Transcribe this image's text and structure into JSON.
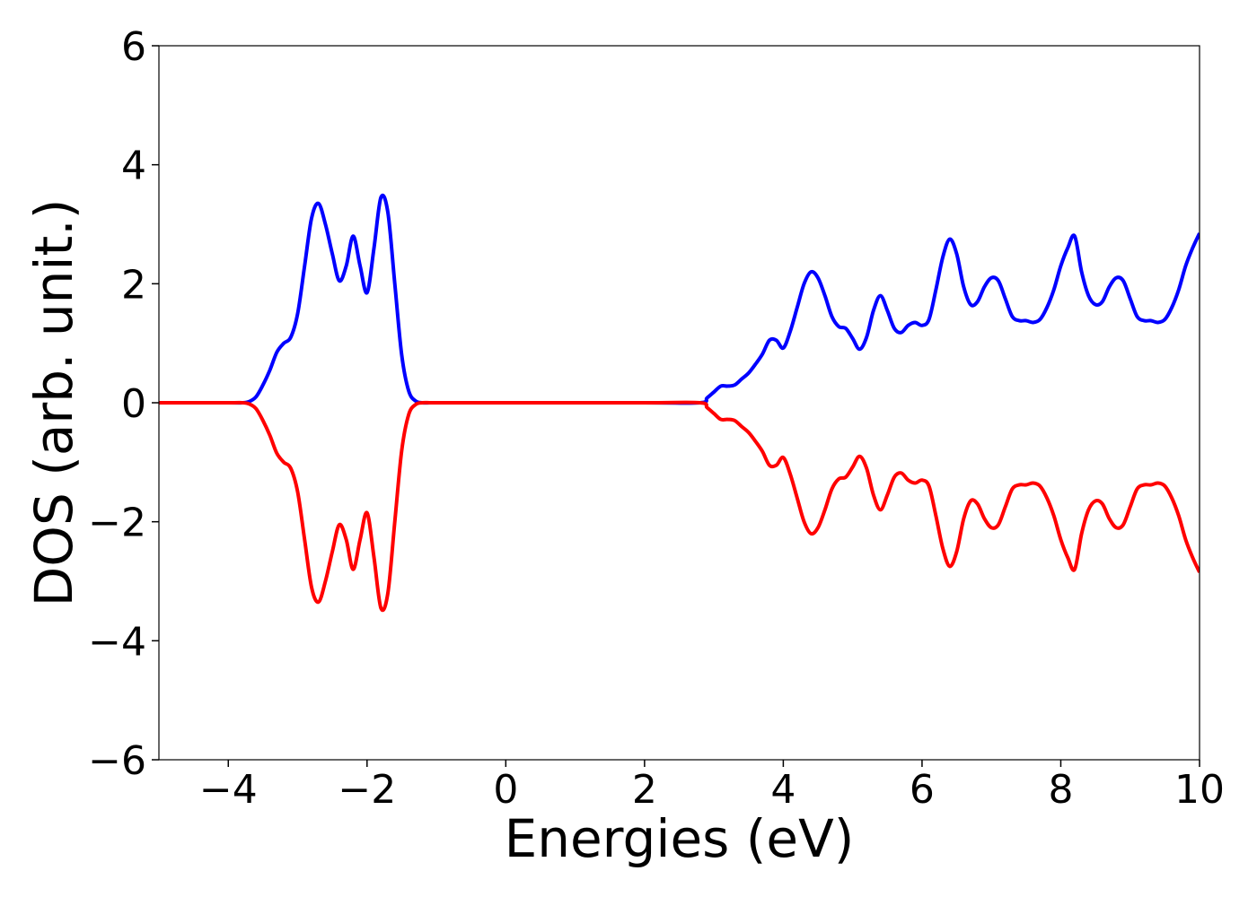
{
  "chart_data": {
    "type": "line",
    "title": "",
    "xlabel": "Energies (eV)",
    "ylabel": "DOS (arb. unit.)",
    "xlim": [
      -5,
      10
    ],
    "ylim": [
      -6,
      6
    ],
    "x_ticks": [
      -4,
      -2,
      0,
      2,
      4,
      6,
      8,
      10
    ],
    "y_ticks": [
      -6,
      -4,
      -2,
      0,
      2,
      4,
      6
    ],
    "x_tick_labels": [
      "−4",
      "−2",
      "0",
      "2",
      "4",
      "6",
      "8",
      "10"
    ],
    "y_tick_labels": [
      "−6",
      "−4",
      "−2",
      "0",
      "2",
      "4",
      "6"
    ],
    "grid": false,
    "legend": "none",
    "series": [
      {
        "color": "#0000ff",
        "x": [
          -5.0,
          -4.0,
          -3.8,
          -3.7,
          -3.6,
          -3.5,
          -3.4,
          -3.3,
          -3.2,
          -3.1,
          -3.0,
          -2.9,
          -2.8,
          -2.7,
          -2.6,
          -2.5,
          -2.4,
          -2.3,
          -2.2,
          -2.1,
          -2.0,
          -1.9,
          -1.8,
          -1.7,
          -1.6,
          -1.5,
          -1.4,
          -1.3,
          -1.2,
          -1.1,
          -1.0,
          -0.9,
          -0.8,
          -0.7,
          -0.6,
          -0.5,
          0.0,
          2.0,
          2.8,
          2.9,
          3.0,
          3.1,
          3.2,
          3.3,
          3.4,
          3.5,
          3.6,
          3.7,
          3.8,
          3.9,
          4.0,
          4.1,
          4.2,
          4.3,
          4.4,
          4.5,
          4.6,
          4.7,
          4.8,
          4.9,
          5.0,
          5.1,
          5.2,
          5.3,
          5.4,
          5.5,
          5.6,
          5.7,
          5.8,
          5.9,
          6.0,
          6.1,
          6.2,
          6.3,
          6.4,
          6.5,
          6.6,
          6.7,
          6.8,
          6.9,
          7.0,
          7.1,
          7.2,
          7.3,
          7.4,
          7.5,
          7.6,
          7.7,
          7.8,
          7.9,
          8.0,
          8.1,
          8.2,
          8.3,
          8.4,
          8.5,
          8.6,
          8.7,
          8.8,
          8.9,
          9.0,
          9.1,
          9.2,
          9.3,
          9.4,
          9.5,
          9.6,
          9.7,
          9.8,
          9.9,
          10.0
        ],
        "y": [
          0.0,
          0.0,
          0.0,
          0.02,
          0.1,
          0.3,
          0.55,
          0.85,
          1.0,
          1.1,
          1.5,
          2.3,
          3.1,
          3.35,
          3.0,
          2.5,
          2.05,
          2.3,
          2.8,
          2.3,
          1.85,
          2.6,
          3.45,
          3.2,
          2.0,
          0.8,
          0.2,
          0.03,
          0.0,
          0.0,
          0.0,
          0.0,
          0.0,
          0.0,
          0.0,
          0.0,
          0.0,
          0.0,
          0.0,
          0.08,
          0.18,
          0.28,
          0.28,
          0.3,
          0.4,
          0.5,
          0.65,
          0.82,
          1.05,
          1.05,
          0.92,
          1.2,
          1.6,
          2.0,
          2.2,
          2.1,
          1.8,
          1.45,
          1.28,
          1.25,
          1.08,
          0.9,
          1.1,
          1.55,
          1.8,
          1.55,
          1.25,
          1.18,
          1.3,
          1.35,
          1.3,
          1.4,
          1.9,
          2.45,
          2.75,
          2.5,
          1.95,
          1.65,
          1.7,
          1.95,
          2.1,
          2.05,
          1.75,
          1.45,
          1.38,
          1.38,
          1.35,
          1.4,
          1.6,
          1.9,
          2.3,
          2.6,
          2.8,
          2.2,
          1.8,
          1.65,
          1.7,
          1.95,
          2.1,
          2.05,
          1.75,
          1.45,
          1.38,
          1.38,
          1.35,
          1.4,
          1.6,
          1.9,
          2.3,
          2.6,
          2.85
        ]
      },
      {
        "color": "#ff0000",
        "x": [
          -5.0,
          -4.0,
          -3.8,
          -3.7,
          -3.6,
          -3.5,
          -3.4,
          -3.3,
          -3.2,
          -3.1,
          -3.0,
          -2.9,
          -2.8,
          -2.7,
          -2.6,
          -2.5,
          -2.4,
          -2.3,
          -2.2,
          -2.1,
          -2.0,
          -1.9,
          -1.8,
          -1.7,
          -1.6,
          -1.5,
          -1.4,
          -1.3,
          -1.2,
          -1.1,
          -1.0,
          -0.9,
          -0.8,
          -0.7,
          -0.6,
          -0.5,
          0.0,
          2.0,
          2.8,
          2.9,
          3.0,
          3.1,
          3.2,
          3.3,
          3.4,
          3.5,
          3.6,
          3.7,
          3.8,
          3.9,
          4.0,
          4.1,
          4.2,
          4.3,
          4.4,
          4.5,
          4.6,
          4.7,
          4.8,
          4.9,
          5.0,
          5.1,
          5.2,
          5.3,
          5.4,
          5.5,
          5.6,
          5.7,
          5.8,
          5.9,
          6.0,
          6.1,
          6.2,
          6.3,
          6.4,
          6.5,
          6.6,
          6.7,
          6.8,
          6.9,
          7.0,
          7.1,
          7.2,
          7.3,
          7.4,
          7.5,
          7.6,
          7.7,
          7.8,
          7.9,
          8.0,
          8.1,
          8.2,
          8.3,
          8.4,
          8.5,
          8.6,
          8.7,
          8.8,
          8.9,
          9.0,
          9.1,
          9.2,
          9.3,
          9.4,
          9.5,
          9.6,
          9.7,
          9.8,
          9.9,
          10.0
        ],
        "y": [
          0.0,
          0.0,
          0.0,
          -0.02,
          -0.1,
          -0.3,
          -0.55,
          -0.85,
          -1.0,
          -1.1,
          -1.5,
          -2.3,
          -3.1,
          -3.35,
          -3.0,
          -2.5,
          -2.05,
          -2.3,
          -2.8,
          -2.3,
          -1.85,
          -2.6,
          -3.45,
          -3.2,
          -2.0,
          -0.8,
          -0.2,
          -0.03,
          0.0,
          0.0,
          0.0,
          0.0,
          0.0,
          0.0,
          0.0,
          0.0,
          0.0,
          0.0,
          0.0,
          -0.08,
          -0.18,
          -0.28,
          -0.28,
          -0.3,
          -0.4,
          -0.5,
          -0.65,
          -0.82,
          -1.05,
          -1.05,
          -0.92,
          -1.2,
          -1.6,
          -2.0,
          -2.2,
          -2.1,
          -1.8,
          -1.45,
          -1.28,
          -1.25,
          -1.08,
          -0.9,
          -1.1,
          -1.55,
          -1.8,
          -1.55,
          -1.25,
          -1.18,
          -1.3,
          -1.35,
          -1.3,
          -1.4,
          -1.9,
          -2.45,
          -2.75,
          -2.5,
          -1.95,
          -1.65,
          -1.7,
          -1.95,
          -2.1,
          -2.05,
          -1.75,
          -1.45,
          -1.38,
          -1.38,
          -1.35,
          -1.4,
          -1.6,
          -1.9,
          -2.3,
          -2.6,
          -2.8,
          -2.2,
          -1.8,
          -1.65,
          -1.7,
          -1.95,
          -2.1,
          -2.05,
          -1.75,
          -1.45,
          -1.38,
          -1.38,
          -1.35,
          -1.4,
          -1.6,
          -1.9,
          -2.3,
          -2.6,
          -2.85
        ]
      }
    ]
  }
}
